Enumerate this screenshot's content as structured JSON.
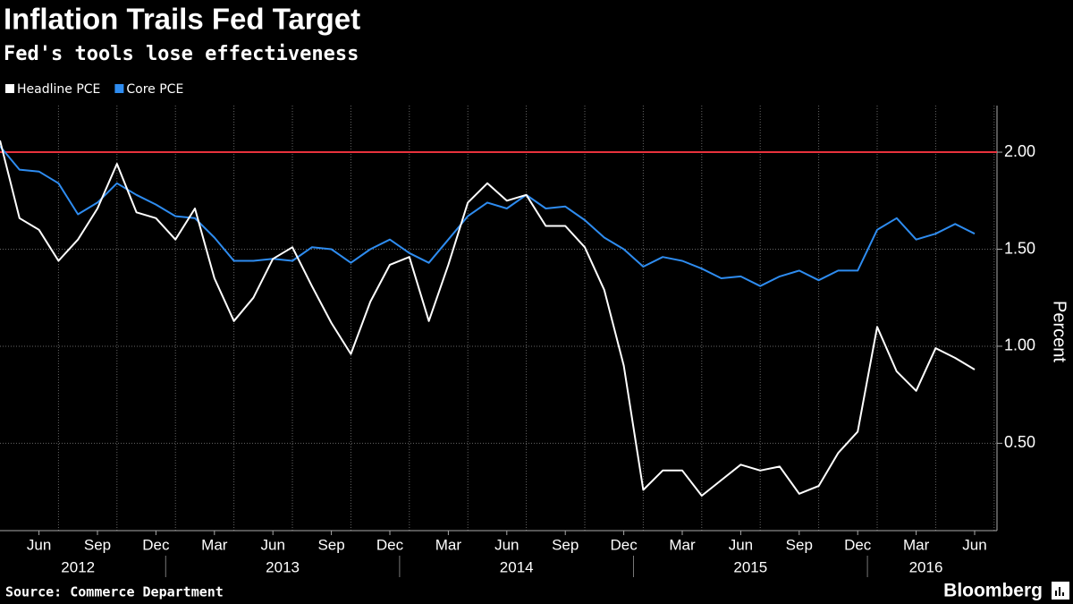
{
  "chart_data": {
    "type": "line",
    "title": "Inflation Trails Fed Target",
    "subtitle": "Fed's tools lose effectiveness",
    "y_label": "Percent",
    "source": "Source: Commerce Department",
    "brand": "Bloomberg",
    "x": [
      "2012-04",
      "2012-05",
      "2012-06",
      "2012-07",
      "2012-08",
      "2012-09",
      "2012-10",
      "2012-11",
      "2012-12",
      "2013-01",
      "2013-02",
      "2013-03",
      "2013-04",
      "2013-05",
      "2013-06",
      "2013-07",
      "2013-08",
      "2013-09",
      "2013-10",
      "2013-11",
      "2013-12",
      "2014-01",
      "2014-02",
      "2014-03",
      "2014-04",
      "2014-05",
      "2014-06",
      "2014-07",
      "2014-08",
      "2014-09",
      "2014-10",
      "2014-11",
      "2014-12",
      "2015-01",
      "2015-02",
      "2015-03",
      "2015-04",
      "2015-05",
      "2015-06",
      "2015-07",
      "2015-08",
      "2015-09",
      "2015-10",
      "2015-11",
      "2015-12",
      "2016-01",
      "2016-02",
      "2016-03",
      "2016-04",
      "2016-05",
      "2016-06"
    ],
    "series": [
      {
        "name": "Headline PCE",
        "color": "#ffffff",
        "values": [
          2.06,
          1.66,
          1.6,
          1.44,
          1.55,
          1.71,
          1.94,
          1.69,
          1.66,
          1.55,
          1.71,
          1.35,
          1.13,
          1.25,
          1.45,
          1.51,
          1.31,
          1.12,
          0.96,
          1.23,
          1.42,
          1.46,
          1.13,
          1.42,
          1.74,
          1.84,
          1.75,
          1.78,
          1.62,
          1.62,
          1.51,
          1.29,
          0.9,
          0.26,
          0.36,
          0.36,
          0.23,
          0.31,
          0.39,
          0.36,
          0.38,
          0.24,
          0.28,
          0.45,
          0.56,
          1.1,
          0.87,
          0.77,
          0.99,
          0.94,
          0.88
        ]
      },
      {
        "name": "Core PCE",
        "color": "#2e8cf0",
        "values": [
          2.03,
          1.91,
          1.9,
          1.84,
          1.68,
          1.74,
          1.84,
          1.78,
          1.73,
          1.67,
          1.66,
          1.56,
          1.44,
          1.44,
          1.45,
          1.44,
          1.51,
          1.5,
          1.43,
          1.5,
          1.55,
          1.48,
          1.43,
          1.55,
          1.67,
          1.74,
          1.71,
          1.78,
          1.71,
          1.72,
          1.65,
          1.56,
          1.5,
          1.41,
          1.46,
          1.44,
          1.4,
          1.35,
          1.36,
          1.31,
          1.36,
          1.39,
          1.34,
          1.39,
          1.39,
          1.6,
          1.66,
          1.55,
          1.58,
          1.63,
          1.58
        ]
      }
    ],
    "reference_line": {
      "value": 2,
      "color": "#e8323c"
    },
    "ylim": [
      0.05,
      2.24
    ],
    "yticks": [
      {
        "value": 0.5,
        "label": "0.50"
      },
      {
        "value": 1,
        "label": "1.00"
      },
      {
        "value": 1.5,
        "label": "1.50"
      },
      {
        "value": 2,
        "label": "2.00"
      }
    ],
    "xticks": [
      {
        "value": "2012-06",
        "label": "Jun"
      },
      {
        "value": "2012-09",
        "label": "Sep"
      },
      {
        "value": "2012-12",
        "label": "Dec"
      },
      {
        "value": "2013-03",
        "label": "Mar"
      },
      {
        "value": "2013-06",
        "label": "Jun"
      },
      {
        "value": "2013-09",
        "label": "Sep"
      },
      {
        "value": "2013-12",
        "label": "Dec"
      },
      {
        "value": "2014-03",
        "label": "Mar"
      },
      {
        "value": "2014-06",
        "label": "Jun"
      },
      {
        "value": "2014-09",
        "label": "Sep"
      },
      {
        "value": "2014-12",
        "label": "Dec"
      },
      {
        "value": "2015-03",
        "label": "Mar"
      },
      {
        "value": "2015-06",
        "label": "Jun"
      },
      {
        "value": "2015-09",
        "label": "Sep"
      },
      {
        "value": "2015-12",
        "label": "Dec"
      },
      {
        "value": "2016-03",
        "label": "Mar"
      },
      {
        "value": "2016-06",
        "label": "Jun"
      }
    ],
    "years": [
      "2012",
      "2013",
      "2014",
      "2015",
      "2016"
    ],
    "grid": true,
    "legend": "top-left"
  }
}
